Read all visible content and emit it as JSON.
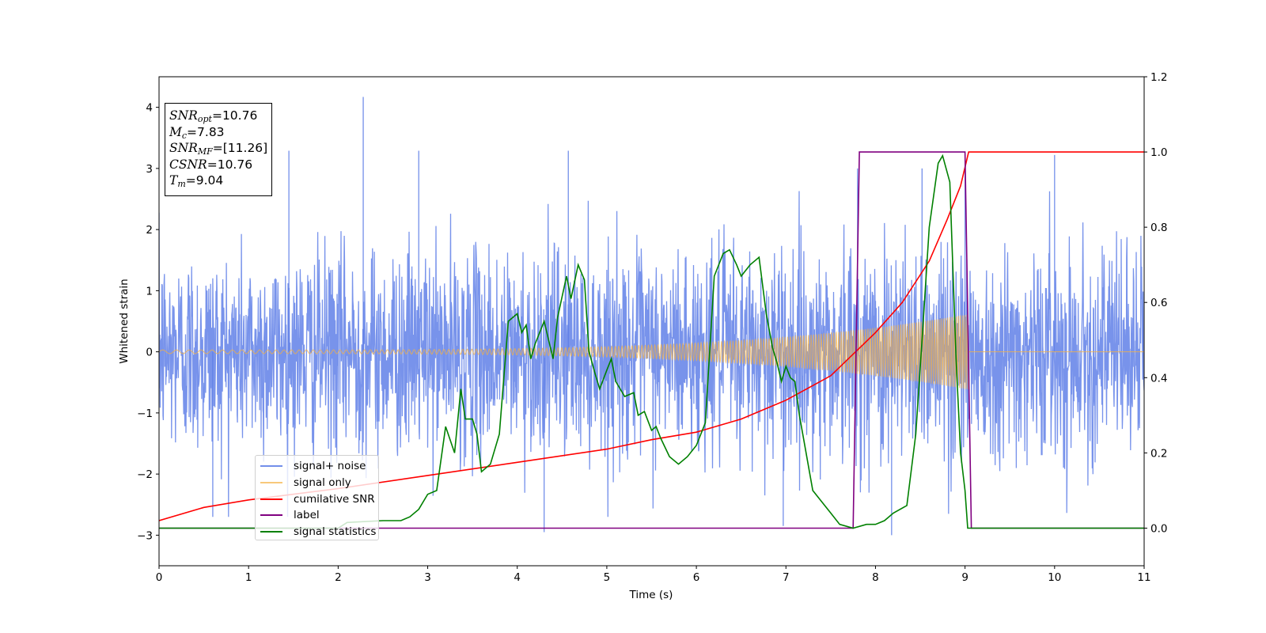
{
  "chart_data": {
    "type": "line",
    "xlabel": "Time (s)",
    "ylabel": "Whitened strain",
    "xlim": [
      0,
      11
    ],
    "ylim": [
      -3.5,
      4.5
    ],
    "y2lim": [
      -0.1,
      1.2
    ],
    "x_ticks": [
      "0",
      "1",
      "2",
      "3",
      "4",
      "5",
      "6",
      "7",
      "8",
      "9",
      "10",
      "11"
    ],
    "y_ticks": [
      "−3",
      "−2",
      "−1",
      "0",
      "1",
      "2",
      "3",
      "4"
    ],
    "y2_ticks": [
      "0.0",
      "0.2",
      "0.4",
      "0.6",
      "0.8",
      "1.0",
      "1.2"
    ],
    "grid": false,
    "legend_position": "lower-left",
    "annotation": {
      "rows": [
        {
          "sym": "SNR",
          "sub": "opt",
          "text": "=10.76"
        },
        {
          "sym": "M",
          "sub": "c",
          "text": "=7.83"
        },
        {
          "sym": "SNR",
          "sub": "MF",
          "text": "=[11.26]"
        },
        {
          "sym": "CSNR",
          "sub": "",
          "text": "=10.76"
        },
        {
          "sym": "T",
          "sub": "m",
          "text": "=9.04"
        }
      ]
    },
    "series": [
      {
        "name": "signal+ noise",
        "axis": "left",
        "color": "#5a7be6",
        "kind": "noise",
        "std": 0.82,
        "sample_step": 0.004,
        "chirp_end": 9.04,
        "notable_peaks": [
          {
            "x": 2.28,
            "y": 4.17
          },
          {
            "x": 1.45,
            "y": 3.29
          },
          {
            "x": 2.9,
            "y": 3.29
          },
          {
            "x": 4.57,
            "y": 3.29
          },
          {
            "x": 9.0,
            "y": 3.22
          },
          {
            "x": 10.0,
            "y": 3.22
          },
          {
            "x": 7.8,
            "y": 3.0
          },
          {
            "x": 8.52,
            "y": 3.0
          },
          {
            "x": 4.3,
            "y": -2.95
          },
          {
            "x": 8.18,
            "y": -3.0
          },
          {
            "x": 0.6,
            "y": -2.7
          },
          {
            "x": 6.97,
            "y": -2.85
          }
        ]
      },
      {
        "name": "signal only",
        "axis": "left",
        "color": "#f5b041",
        "kind": "chirp",
        "amp_start": 0.03,
        "amp_end": 0.62,
        "f_start": 6,
        "t_end": 9.04
      },
      {
        "name": "cumilative SNR",
        "axis": "right",
        "color": "#ff0000",
        "x": [
          0,
          0.5,
          1,
          2,
          3,
          4,
          5,
          5.5,
          6,
          6.5,
          7,
          7.5,
          8,
          8.3,
          8.6,
          8.8,
          8.95,
          9.04,
          11
        ],
        "y": [
          0.02,
          0.055,
          0.075,
          0.105,
          0.14,
          0.175,
          0.21,
          0.235,
          0.255,
          0.29,
          0.34,
          0.405,
          0.52,
          0.6,
          0.71,
          0.82,
          0.91,
          1.0,
          1.0
        ]
      },
      {
        "name": "label",
        "axis": "right",
        "color": "#800080",
        "x": [
          0,
          7.75,
          7.82,
          9.0,
          9.07,
          11
        ],
        "y": [
          0,
          0,
          1,
          1,
          0,
          0
        ]
      },
      {
        "name": "signal statistics",
        "axis": "right",
        "color": "#008000",
        "x": [
          0,
          1,
          2,
          2.1,
          2.5,
          2.7,
          2.8,
          2.9,
          3.0,
          3.1,
          3.2,
          3.3,
          3.37,
          3.42,
          3.5,
          3.55,
          3.6,
          3.7,
          3.8,
          3.9,
          4.0,
          4.05,
          4.1,
          4.15,
          4.2,
          4.3,
          4.4,
          4.45,
          4.55,
          4.6,
          4.68,
          4.75,
          4.8,
          4.87,
          4.92,
          5.0,
          5.05,
          5.1,
          5.2,
          5.3,
          5.35,
          5.42,
          5.5,
          5.55,
          5.6,
          5.7,
          5.8,
          5.9,
          6.0,
          6.1,
          6.2,
          6.3,
          6.37,
          6.45,
          6.5,
          6.6,
          6.7,
          6.78,
          6.85,
          6.9,
          6.95,
          7.0,
          7.05,
          7.1,
          7.15,
          7.3,
          7.5,
          7.6,
          7.75,
          7.9,
          8.0,
          8.1,
          8.2,
          8.35,
          8.45,
          8.52,
          8.6,
          8.7,
          8.75,
          8.83,
          8.9,
          8.95,
          9.0,
          9.03,
          9.07,
          11
        ],
        "y": [
          0,
          0,
          0.0,
          0.015,
          0.02,
          0.02,
          0.03,
          0.05,
          0.09,
          0.1,
          0.27,
          0.2,
          0.37,
          0.29,
          0.29,
          0.25,
          0.15,
          0.17,
          0.25,
          0.55,
          0.57,
          0.52,
          0.54,
          0.45,
          0.49,
          0.55,
          0.45,
          0.56,
          0.67,
          0.61,
          0.7,
          0.66,
          0.47,
          0.41,
          0.37,
          0.42,
          0.45,
          0.39,
          0.35,
          0.36,
          0.3,
          0.31,
          0.26,
          0.27,
          0.24,
          0.19,
          0.17,
          0.19,
          0.22,
          0.28,
          0.67,
          0.73,
          0.74,
          0.7,
          0.67,
          0.7,
          0.72,
          0.57,
          0.48,
          0.44,
          0.39,
          0.43,
          0.4,
          0.39,
          0.3,
          0.1,
          0.04,
          0.01,
          0.0,
          0.01,
          0.01,
          0.02,
          0.04,
          0.06,
          0.25,
          0.5,
          0.8,
          0.97,
          0.99,
          0.92,
          0.45,
          0.2,
          0.1,
          0.0,
          0.0,
          0.0
        ]
      }
    ]
  }
}
